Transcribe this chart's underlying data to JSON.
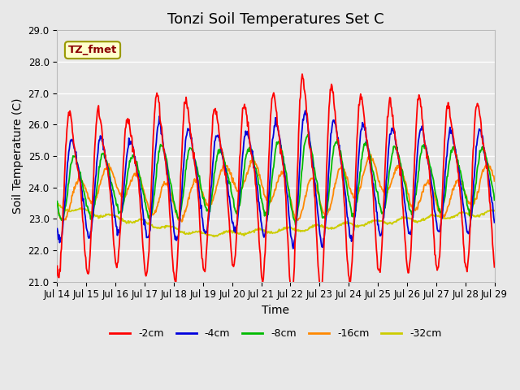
{
  "title": "Tonzi Soil Temperatures Set C",
  "xlabel": "Time",
  "ylabel": "Soil Temperature (C)",
  "ylim": [
    21.0,
    29.0
  ],
  "yticks": [
    21.0,
    22.0,
    23.0,
    24.0,
    25.0,
    26.0,
    27.0,
    28.0,
    29.0
  ],
  "xtick_labels": [
    "Jul 14",
    "Jul 15",
    "Jul 16",
    "Jul 17",
    "Jul 18",
    "Jul 19",
    "Jul 20",
    "Jul 21",
    "Jul 22",
    "Jul 23",
    "Jul 24",
    "Jul 25",
    "Jul 26",
    "Jul 27",
    "Jul 28",
    "Jul 29"
  ],
  "annotation_text": "TZ_fmet",
  "annotation_color": "#8B0000",
  "annotation_bg": "#FFFFCC",
  "annotation_border": "#999900",
  "series_colors": [
    "#FF0000",
    "#0000DD",
    "#00BB00",
    "#FF8800",
    "#CCCC00"
  ],
  "series_labels": [
    "-2cm",
    "-4cm",
    "-8cm",
    "-16cm",
    "-32cm"
  ],
  "background_color": "#E8E8E8",
  "plot_bg_color": "#E8E8E8",
  "grid_color": "#FFFFFF",
  "title_fontsize": 13,
  "axis_fontsize": 10,
  "tick_fontsize": 8.5,
  "line_width": 1.3,
  "figwidth": 6.4,
  "figheight": 4.8,
  "dpi": 100
}
